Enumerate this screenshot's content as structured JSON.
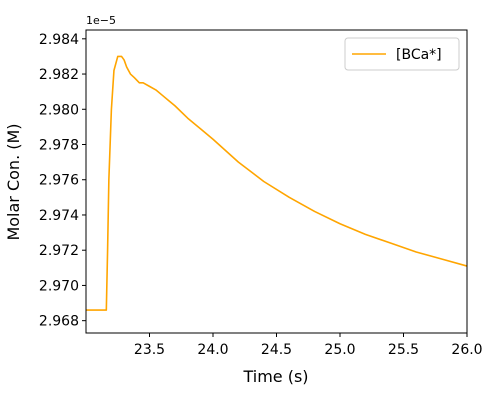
{
  "chart_data": {
    "type": "line",
    "xlabel": "Time (s)",
    "ylabel": "Molar Con. (M)",
    "y_offset_label": "1e−5",
    "xlim": [
      23.0,
      26.0
    ],
    "ylim": [
      2.9673,
      2.9845
    ],
    "x_ticks": [
      23.5,
      24.0,
      24.5,
      25.0,
      25.5,
      26.0
    ],
    "x_tick_labels": [
      "23.5",
      "24.0",
      "24.5",
      "25.0",
      "25.5",
      "26.0"
    ],
    "y_ticks": [
      2.968,
      2.97,
      2.972,
      2.974,
      2.976,
      2.978,
      2.98,
      2.982,
      2.984
    ],
    "y_tick_labels": [
      "2.968",
      "2.970",
      "2.972",
      "2.974",
      "2.976",
      "2.978",
      "2.980",
      "2.982",
      "2.984"
    ],
    "grid": false,
    "legend_placement": "top-right",
    "series": [
      {
        "name": "[BCa*]",
        "color": "#ffa500",
        "x": [
          23.0,
          23.16,
          23.17,
          23.18,
          23.2,
          23.22,
          23.25,
          23.28,
          23.3,
          23.32,
          23.35,
          23.38,
          23.42,
          23.45,
          23.5,
          23.55,
          23.6,
          23.65,
          23.7,
          23.8,
          23.9,
          24.0,
          24.2,
          24.4,
          24.6,
          24.8,
          25.0,
          25.2,
          25.4,
          25.6,
          25.8,
          26.0
        ],
        "y": [
          2.9686,
          2.9686,
          2.972,
          2.976,
          2.98,
          2.9822,
          2.983,
          2.983,
          2.9828,
          2.9824,
          2.982,
          2.9818,
          2.9815,
          2.9815,
          2.9813,
          2.9811,
          2.9808,
          2.9805,
          2.9802,
          2.9795,
          2.9789,
          2.9783,
          2.977,
          2.9759,
          2.975,
          2.9742,
          2.9735,
          2.9729,
          2.9724,
          2.9719,
          2.9715,
          2.9711
        ]
      }
    ]
  }
}
